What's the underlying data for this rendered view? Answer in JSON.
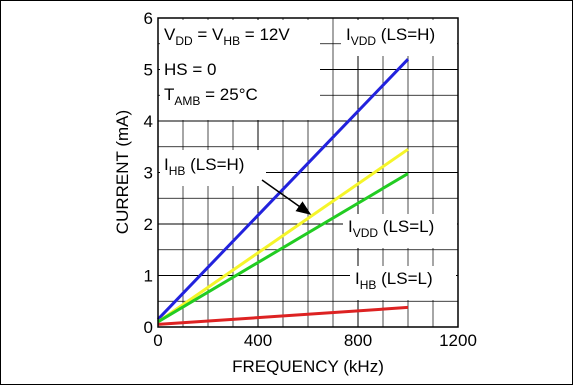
{
  "chart_data": {
    "type": "line",
    "xlabel": "FREQUENCY (kHz)",
    "ylabel": "CURRENT (mA)",
    "xlim": [
      0,
      1200
    ],
    "ylim": [
      0,
      6
    ],
    "x_ticks": [
      "0",
      "400",
      "800",
      "1200"
    ],
    "y_ticks": [
      "0",
      "1",
      "2",
      "3",
      "4",
      "5",
      "6"
    ],
    "grid": true,
    "series": [
      {
        "name": "IVDD (LS=H)",
        "color": "#2222dd",
        "x": [
          0,
          1000
        ],
        "y": [
          0.15,
          5.2
        ]
      },
      {
        "name": "IHB (LS=H)",
        "color": "#f5f52a",
        "x": [
          0,
          1000
        ],
        "y": [
          0.1,
          3.45
        ]
      },
      {
        "name": "IVDD (LS=L)",
        "color": "#22cc22",
        "x": [
          0,
          1000
        ],
        "y": [
          0.1,
          2.98
        ]
      },
      {
        "name": "IHB (LS=L)",
        "color": "#dd2222",
        "x": [
          0,
          1000
        ],
        "y": [
          0.05,
          0.38
        ]
      }
    ],
    "conditions": {
      "line1_main": "V",
      "line1_sub1": "DD",
      "line1_mid": " = V",
      "line1_sub2": "HB",
      "line1_end": " = 12V",
      "line2": "HS = 0",
      "line3_main": "T",
      "line3_sub": "AMB",
      "line3_end": " = 25°C"
    },
    "annotations": {
      "ivdd_lsh": {
        "main": "I",
        "sub": "VDD",
        "end": " (LS=H)"
      },
      "ihb_lsh": {
        "main": "I",
        "sub": "HB",
        "end": " (LS=H)"
      },
      "ivdd_lsl": {
        "main": "I",
        "sub": "VDD",
        "end": " (LS=L)"
      },
      "ihb_lsl": {
        "main": "I",
        "sub": "HB",
        "end": " (LS=L)"
      }
    }
  }
}
